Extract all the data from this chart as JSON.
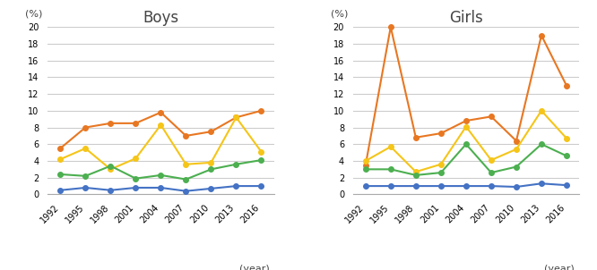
{
  "years": [
    1992,
    1995,
    1998,
    2001,
    2004,
    2007,
    2010,
    2013,
    2016
  ],
  "boys": {
    "orange": [
      5.5,
      8.0,
      8.5,
      8.5,
      9.8,
      7.0,
      7.5,
      9.2,
      10.0
    ],
    "yellow": [
      4.2,
      5.5,
      3.0,
      4.3,
      8.3,
      3.6,
      3.8,
      9.2,
      5.1
    ],
    "green": [
      2.4,
      2.2,
      3.4,
      1.9,
      2.3,
      1.8,
      3.0,
      3.6,
      4.1
    ],
    "blue": [
      0.5,
      0.8,
      0.5,
      0.8,
      0.8,
      0.4,
      0.7,
      1.0,
      1.0
    ]
  },
  "girls": {
    "orange": [
      3.5,
      20.0,
      6.8,
      7.3,
      8.8,
      9.3,
      6.4,
      19.0,
      13.0
    ],
    "yellow": [
      4.0,
      5.7,
      2.7,
      3.6,
      8.1,
      4.1,
      5.4,
      10.0,
      6.7
    ],
    "green": [
      3.0,
      3.0,
      2.3,
      2.6,
      6.0,
      2.6,
      3.3,
      6.0,
      4.6
    ],
    "blue": [
      1.0,
      1.0,
      1.0,
      1.0,
      1.0,
      1.0,
      0.9,
      1.3,
      1.1
    ]
  },
  "colors": {
    "orange": "#E87722",
    "yellow": "#F5C518",
    "green": "#4CAF50",
    "blue": "#4472C4"
  },
  "ylim": [
    0,
    20
  ],
  "yticks": [
    0,
    2,
    4,
    6,
    8,
    10,
    12,
    14,
    16,
    18,
    20
  ],
  "ylabel": "(%)",
  "xlabel": "(year)",
  "title_boys": "Boys",
  "title_girls": "Girls",
  "marker": "o",
  "markersize": 4,
  "linewidth": 1.5,
  "title_fontsize": 12,
  "tick_fontsize": 7,
  "label_fontsize": 8,
  "background": "#ffffff",
  "grid_color": "#cccccc"
}
